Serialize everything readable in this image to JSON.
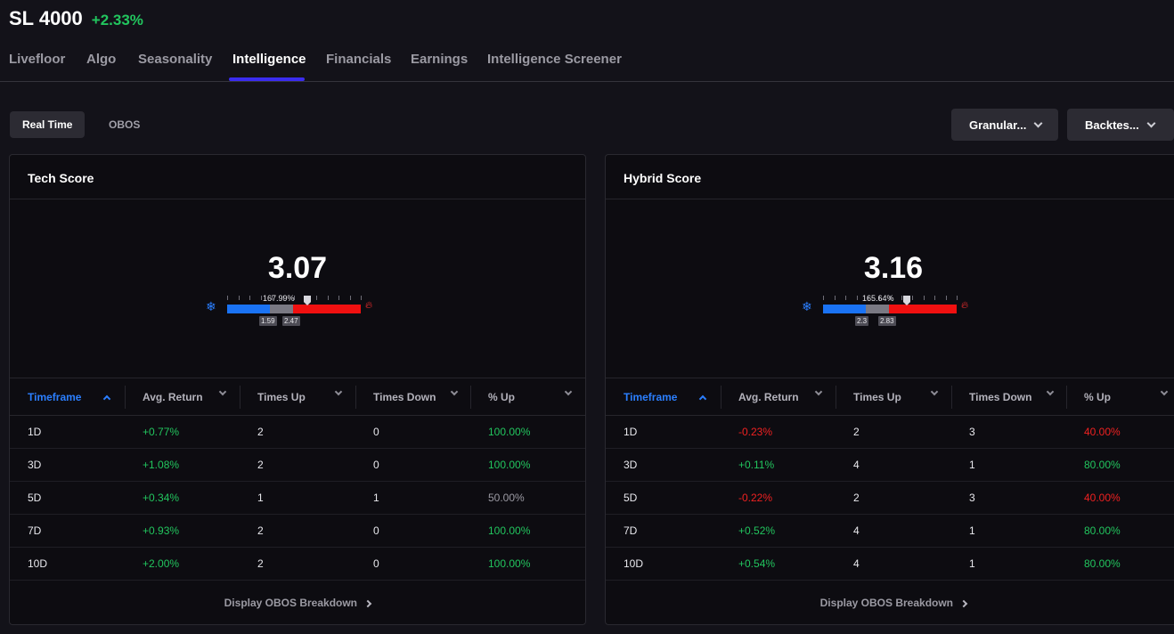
{
  "header": {
    "ticker": "SL 4000",
    "change": "+2.33%"
  },
  "tabs": [
    "Livefloor",
    "Algo",
    "Seasonality",
    "Intelligence",
    "Financials",
    "Earnings",
    "Intelligence Screener"
  ],
  "segments": {
    "real_time": "Real Time",
    "obos": "OBOS"
  },
  "dropdowns": {
    "granularity": "Granular...",
    "backtest": "Backtes..."
  },
  "columns": [
    "Timeframe",
    "Avg. Return",
    "Times Up",
    "Times Down",
    "% Up"
  ],
  "panels": [
    {
      "title": "Tech Score",
      "score": "3.07",
      "gauge": {
        "pct_label": "167.99%",
        "low_tag": "1.59",
        "high_tag": "2.47",
        "level": 0.6
      },
      "rows": [
        {
          "tf": "1D",
          "avg": "+0.77%",
          "up": "2",
          "down": "0",
          "pct": "100.00%",
          "avg_s": "pos",
          "pct_s": "pos"
        },
        {
          "tf": "3D",
          "avg": "+1.08%",
          "up": "2",
          "down": "0",
          "pct": "100.00%",
          "avg_s": "pos",
          "pct_s": "pos"
        },
        {
          "tf": "5D",
          "avg": "+0.34%",
          "up": "1",
          "down": "1",
          "pct": "50.00%",
          "avg_s": "pos",
          "pct_s": "neu"
        },
        {
          "tf": "7D",
          "avg": "+0.93%",
          "up": "2",
          "down": "0",
          "pct": "100.00%",
          "avg_s": "pos",
          "pct_s": "pos"
        },
        {
          "tf": "10D",
          "avg": "+2.00%",
          "up": "2",
          "down": "0",
          "pct": "100.00%",
          "avg_s": "pos",
          "pct_s": "pos"
        }
      ],
      "footer": "Display OBOS Breakdown"
    },
    {
      "title": "Hybrid Score",
      "score": "3.16",
      "gauge": {
        "pct_label": "165.64%",
        "low_tag": "2.3",
        "high_tag": "2.83",
        "level": 0.627
      },
      "rows": [
        {
          "tf": "1D",
          "avg": "-0.23%",
          "up": "2",
          "down": "3",
          "pct": "40.00%",
          "avg_s": "neg",
          "pct_s": "neg"
        },
        {
          "tf": "3D",
          "avg": "+0.11%",
          "up": "4",
          "down": "1",
          "pct": "80.00%",
          "avg_s": "pos",
          "pct_s": "pos"
        },
        {
          "tf": "5D",
          "avg": "-0.22%",
          "up": "2",
          "down": "3",
          "pct": "40.00%",
          "avg_s": "neg",
          "pct_s": "neg"
        },
        {
          "tf": "7D",
          "avg": "+0.52%",
          "up": "4",
          "down": "1",
          "pct": "80.00%",
          "avg_s": "pos",
          "pct_s": "pos"
        },
        {
          "tf": "10D",
          "avg": "+0.54%",
          "up": "4",
          "down": "1",
          "pct": "80.00%",
          "avg_s": "pos",
          "pct_s": "pos"
        }
      ],
      "footer": "Display OBOS Breakdown"
    }
  ],
  "colors": {
    "accent": "#3b2cf0",
    "positive": "#22c55e",
    "negative": "#ef2121",
    "cold": "#2b7fff",
    "hot": "#ff2a2a"
  }
}
